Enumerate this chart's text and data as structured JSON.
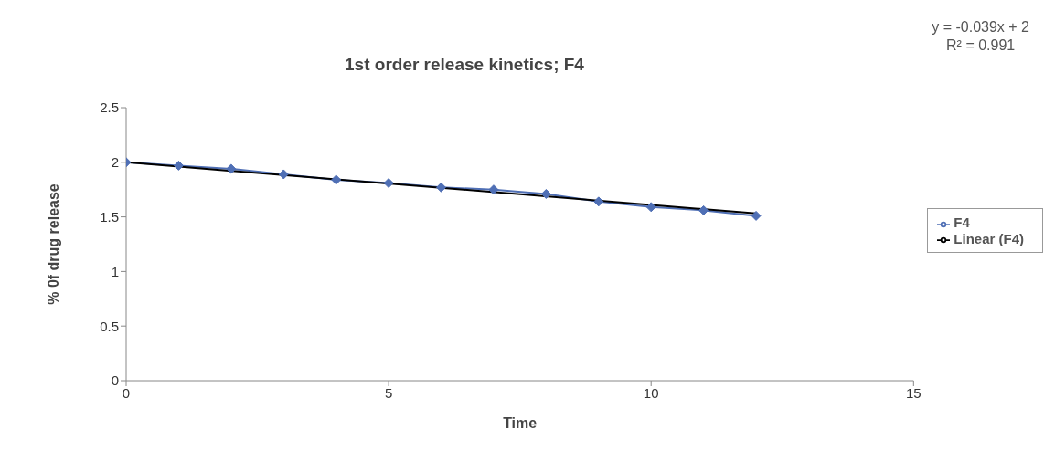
{
  "chart_data": {
    "type": "line",
    "title": "1st order release kinetics; F4",
    "xlabel": "Time",
    "ylabel": "% 0f drug release",
    "x": [
      0,
      1,
      2,
      3,
      4,
      5,
      6,
      7,
      8,
      9,
      10,
      11,
      12
    ],
    "series": [
      {
        "name": "F4",
        "color": "#4f6fb5",
        "values": [
          2.0,
          1.97,
          1.94,
          1.89,
          1.84,
          1.81,
          1.77,
          1.75,
          1.71,
          1.64,
          1.59,
          1.56,
          1.51
        ]
      },
      {
        "name": "Linear (F4)",
        "type": "line",
        "color": "#000000",
        "x": [
          0,
          12
        ],
        "values": [
          2,
          1.532
        ],
        "marker": "none"
      }
    ],
    "xlim": [
      0,
      15
    ],
    "xticks": [
      0,
      5,
      10,
      15
    ],
    "ylim": [
      0,
      2.5
    ],
    "yticks": [
      0,
      0.5,
      1,
      1.5,
      2,
      2.5
    ],
    "grid": false,
    "legend": "right",
    "marker": "diamond",
    "line_style": "solid",
    "annotations": [
      "y = -0.039x + 2",
      "R² = 0.991"
    ]
  }
}
